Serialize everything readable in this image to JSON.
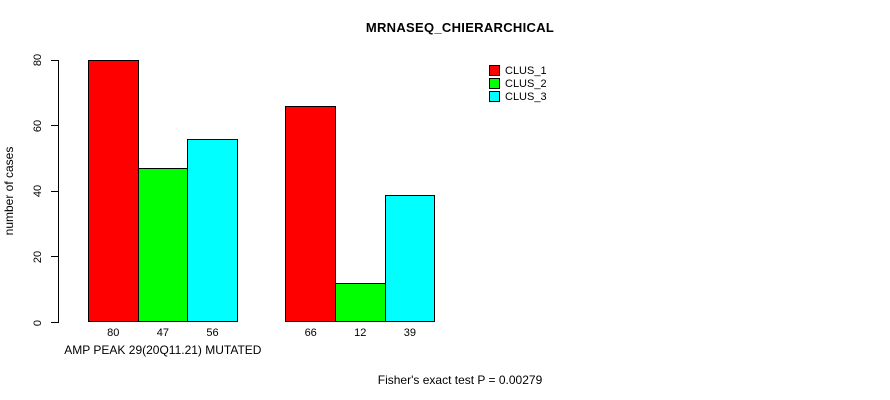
{
  "chart_data": {
    "type": "bar",
    "title": "MRNASEQ_CHIERARCHICAL",
    "ylabel": "number of cases",
    "xlabel": "",
    "ylim": [
      0,
      80
    ],
    "yticks": [
      0,
      20,
      40,
      60,
      80
    ],
    "grid": false,
    "categories": [
      "AMP PEAK 29(20Q11.21) MUTATED",
      ""
    ],
    "series": [
      {
        "name": "CLUS_1",
        "color": "#ff0000",
        "values": [
          80,
          66
        ]
      },
      {
        "name": "CLUS_2",
        "color": "#00ff00",
        "values": [
          47,
          12
        ]
      },
      {
        "name": "CLUS_3",
        "color": "#00ffff",
        "values": [
          56,
          39
        ]
      }
    ],
    "bar_value_labels_shown": true,
    "legend": {
      "position": "top-right",
      "entries": [
        {
          "label": "CLUS_1",
          "color": "#ff0000"
        },
        {
          "label": "CLUS_2",
          "color": "#00ff00"
        },
        {
          "label": "CLUS_3",
          "color": "#00ffff"
        }
      ]
    },
    "annotation": "Fisher's exact test P = 0.00279",
    "colors": {
      "axis": "#000000",
      "text": "#000000",
      "background": "#ffffff"
    }
  }
}
